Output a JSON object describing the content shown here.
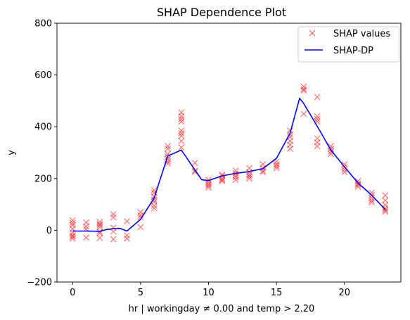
{
  "chart_data": {
    "type": "scatter",
    "title": "SHAP Dependence Plot",
    "xlabel": "hr | workingday ≠ 0.00 and temp > 2.20",
    "ylabel": "y",
    "xlim": [
      -1.15,
      24.15
    ],
    "ylim": [
      -200,
      800
    ],
    "x_ticks": [
      0,
      5,
      10,
      15,
      20
    ],
    "y_ticks": [
      -200,
      0,
      200,
      400,
      600,
      800
    ],
    "legend_position": "top-right",
    "grid": false,
    "series": [
      {
        "name": "SHAP values",
        "kind": "marker-x",
        "color": "#ff0000",
        "points": [
          [
            0,
            38
          ],
          [
            0,
            28
          ],
          [
            0,
            20
          ],
          [
            0,
            5
          ],
          [
            0,
            -10
          ],
          [
            0,
            -20
          ],
          [
            0,
            -25
          ],
          [
            0,
            -32
          ],
          [
            1,
            30
          ],
          [
            1,
            15
          ],
          [
            1,
            5
          ],
          [
            1,
            -28
          ],
          [
            2,
            33
          ],
          [
            2,
            25
          ],
          [
            2,
            20
          ],
          [
            2,
            12
          ],
          [
            2,
            -5
          ],
          [
            2,
            -12
          ],
          [
            2,
            -30
          ],
          [
            3,
            62
          ],
          [
            3,
            50
          ],
          [
            3,
            10
          ],
          [
            3,
            -5
          ],
          [
            3,
            -35
          ],
          [
            4,
            35
          ],
          [
            4,
            -20
          ],
          [
            4,
            -32
          ],
          [
            5,
            70
          ],
          [
            5,
            58
          ],
          [
            5,
            50
          ],
          [
            5,
            12
          ],
          [
            6,
            155
          ],
          [
            6,
            145
          ],
          [
            6,
            130
          ],
          [
            6,
            118
          ],
          [
            6,
            110
          ],
          [
            6,
            95
          ],
          [
            6,
            85
          ],
          [
            7,
            325
          ],
          [
            7,
            315
          ],
          [
            7,
            295
          ],
          [
            7,
            285
          ],
          [
            7,
            275
          ],
          [
            7,
            265
          ],
          [
            7,
            258
          ],
          [
            8,
            455
          ],
          [
            8,
            440
          ],
          [
            8,
            430
          ],
          [
            8,
            420
          ],
          [
            8,
            385
          ],
          [
            8,
            375
          ],
          [
            8,
            365
          ],
          [
            8,
            345
          ],
          [
            8,
            320
          ],
          [
            9,
            260
          ],
          [
            9,
            230
          ],
          [
            9,
            225
          ],
          [
            10,
            195
          ],
          [
            10,
            185
          ],
          [
            10,
            178
          ],
          [
            10,
            172
          ],
          [
            10,
            165
          ],
          [
            11,
            215
          ],
          [
            11,
            210
          ],
          [
            11,
            200
          ],
          [
            11,
            195
          ],
          [
            11,
            190
          ],
          [
            12,
            230
          ],
          [
            12,
            220
          ],
          [
            12,
            212
          ],
          [
            12,
            205
          ],
          [
            12,
            195
          ],
          [
            13,
            240
          ],
          [
            13,
            225
          ],
          [
            13,
            215
          ],
          [
            13,
            208
          ],
          [
            13,
            200
          ],
          [
            14,
            255
          ],
          [
            14,
            240
          ],
          [
            14,
            230
          ],
          [
            14,
            225
          ],
          [
            15,
            265
          ],
          [
            15,
            255
          ],
          [
            15,
            248
          ],
          [
            15,
            240
          ],
          [
            16,
            385
          ],
          [
            16,
            370
          ],
          [
            16,
            360
          ],
          [
            16,
            345
          ],
          [
            16,
            330
          ],
          [
            16,
            315
          ],
          [
            17,
            555
          ],
          [
            17,
            545
          ],
          [
            17,
            540
          ],
          [
            17,
            450
          ],
          [
            18,
            515
          ],
          [
            18,
            440
          ],
          [
            18,
            430
          ],
          [
            18,
            420
          ],
          [
            18,
            355
          ],
          [
            18,
            340
          ],
          [
            18,
            325
          ],
          [
            19,
            325
          ],
          [
            19,
            315
          ],
          [
            19,
            305
          ],
          [
            19,
            295
          ],
          [
            20,
            255
          ],
          [
            20,
            245
          ],
          [
            20,
            235
          ],
          [
            20,
            225
          ],
          [
            21,
            190
          ],
          [
            21,
            180
          ],
          [
            21,
            175
          ],
          [
            21,
            168
          ],
          [
            22,
            145
          ],
          [
            22,
            135
          ],
          [
            22,
            125
          ],
          [
            22,
            115
          ],
          [
            22,
            108
          ],
          [
            23,
            135
          ],
          [
            23,
            115
          ],
          [
            23,
            98
          ],
          [
            23,
            85
          ],
          [
            23,
            78
          ],
          [
            23,
            72
          ]
        ]
      },
      {
        "name": "SHAP-DP",
        "kind": "line",
        "color": "#0000ff",
        "points": [
          [
            0,
            -3
          ],
          [
            1,
            -3
          ],
          [
            2,
            -4
          ],
          [
            2.5,
            3
          ],
          [
            3,
            6
          ],
          [
            3.5,
            7
          ],
          [
            4,
            -3
          ],
          [
            5,
            42
          ],
          [
            6,
            125
          ],
          [
            7,
            287
          ],
          [
            8,
            310
          ],
          [
            9,
            233
          ],
          [
            9.5,
            195
          ],
          [
            10,
            192
          ],
          [
            11,
            210
          ],
          [
            12,
            220
          ],
          [
            13,
            227
          ],
          [
            14,
            238
          ],
          [
            15,
            278
          ],
          [
            16,
            375
          ],
          [
            16.7,
            510
          ],
          [
            17,
            490
          ],
          [
            18,
            402
          ],
          [
            19,
            310
          ],
          [
            20,
            245
          ],
          [
            21,
            183
          ],
          [
            22,
            136
          ],
          [
            23,
            80
          ]
        ]
      }
    ]
  }
}
